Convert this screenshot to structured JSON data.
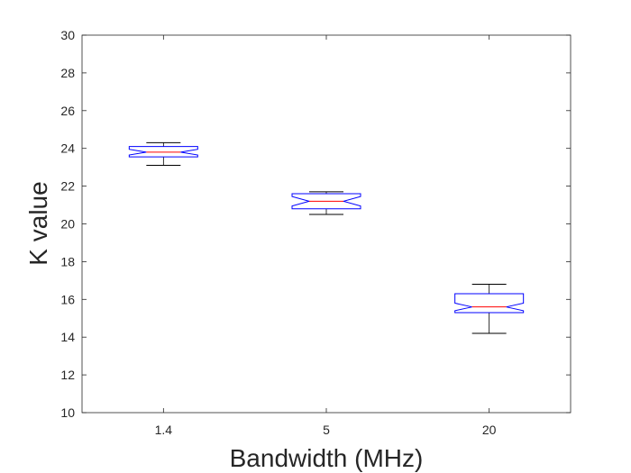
{
  "chart_data": {
    "type": "boxplot",
    "title": "",
    "xlabel": "Bandwidth (MHz)",
    "ylabel": "K value",
    "ylim": [
      10,
      30
    ],
    "yticks": [
      10,
      12,
      14,
      16,
      18,
      20,
      22,
      24,
      26,
      28,
      30
    ],
    "grid": false,
    "categories": [
      "1.4",
      "5",
      "20"
    ],
    "boxes": [
      {
        "category": "1.4",
        "whisker_low": 23.1,
        "q1": 23.55,
        "notch_low": 23.65,
        "median": 23.8,
        "notch_high": 23.95,
        "q3": 24.1,
        "whisker_high": 24.3
      },
      {
        "category": "5",
        "whisker_low": 20.5,
        "q1": 20.8,
        "notch_low": 20.95,
        "median": 21.2,
        "notch_high": 21.45,
        "q3": 21.6,
        "whisker_high": 21.7
      },
      {
        "category": "20",
        "whisker_low": 14.2,
        "q1": 15.3,
        "notch_low": 15.4,
        "median": 15.6,
        "notch_high": 15.8,
        "q3": 16.3,
        "whisker_high": 16.8
      }
    ],
    "colors": {
      "box": "#0000ff",
      "median": "#ff0000",
      "whisker": "#000000",
      "axis": "#262626"
    }
  }
}
